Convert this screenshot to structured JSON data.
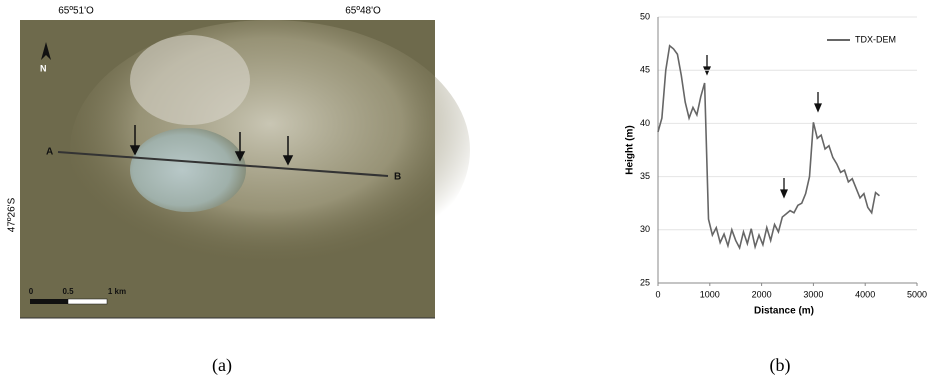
{
  "image_panel": {
    "top_labels": [
      "65º51'O",
      "65º48'O"
    ],
    "side_label": "47º26'S",
    "north": "N",
    "point_a": "A",
    "point_b": "B",
    "scale_labels": [
      "0",
      "0.5",
      "1 km"
    ]
  },
  "captions": [
    "(a)",
    "(b)"
  ],
  "chart_data": {
    "type": "line",
    "x_label": "Distance (m)",
    "y_label": "Height (m)",
    "x": [
      0,
      75,
      150,
      225,
      300,
      375,
      450,
      525,
      600,
      675,
      750,
      825,
      900,
      975,
      1050,
      1125,
      1200,
      1275,
      1350,
      1425,
      1500,
      1575,
      1650,
      1725,
      1800,
      1875,
      1950,
      2025,
      2100,
      2175,
      2250,
      2325,
      2400,
      2475,
      2550,
      2625,
      2700,
      2775,
      2850,
      2925,
      3000,
      3075,
      3150,
      3225,
      3300,
      3375,
      3450,
      3525,
      3600,
      3675,
      3750,
      3825,
      3900,
      3975,
      4050,
      4125,
      4200,
      4275
    ],
    "series": [
      {
        "name": "TDX-DEM",
        "color": "#666666",
        "values": [
          39.2,
          40.5,
          45,
          47.3,
          47,
          46.5,
          44.5,
          42,
          40.5,
          41.5,
          40.8,
          42.5,
          43.8,
          31,
          29.5,
          30.2,
          28.8,
          29.6,
          28.5,
          30,
          29,
          28.3,
          29.8,
          28.7,
          30.1,
          28.4,
          29.5,
          28.6,
          30.2,
          29,
          30.5,
          29.8,
          31.2,
          31.5,
          31.8,
          31.6,
          32.3,
          32.5,
          33.4,
          35,
          40.1,
          38.6,
          38.9,
          37.6,
          37.9,
          36.8,
          36.2,
          35.4,
          35.6,
          34.5,
          34.8,
          33.9,
          33,
          33.4,
          32.1,
          31.6,
          33.5,
          33.2
        ]
      }
    ],
    "xlim": [
      0,
      5000
    ],
    "xticks": [
      0,
      1000,
      2000,
      3000,
      4000,
      5000
    ],
    "ylim": [
      25,
      50
    ],
    "yticks": [
      25,
      30,
      35,
      40,
      45,
      50
    ],
    "grid": true,
    "legend": "upper right"
  }
}
